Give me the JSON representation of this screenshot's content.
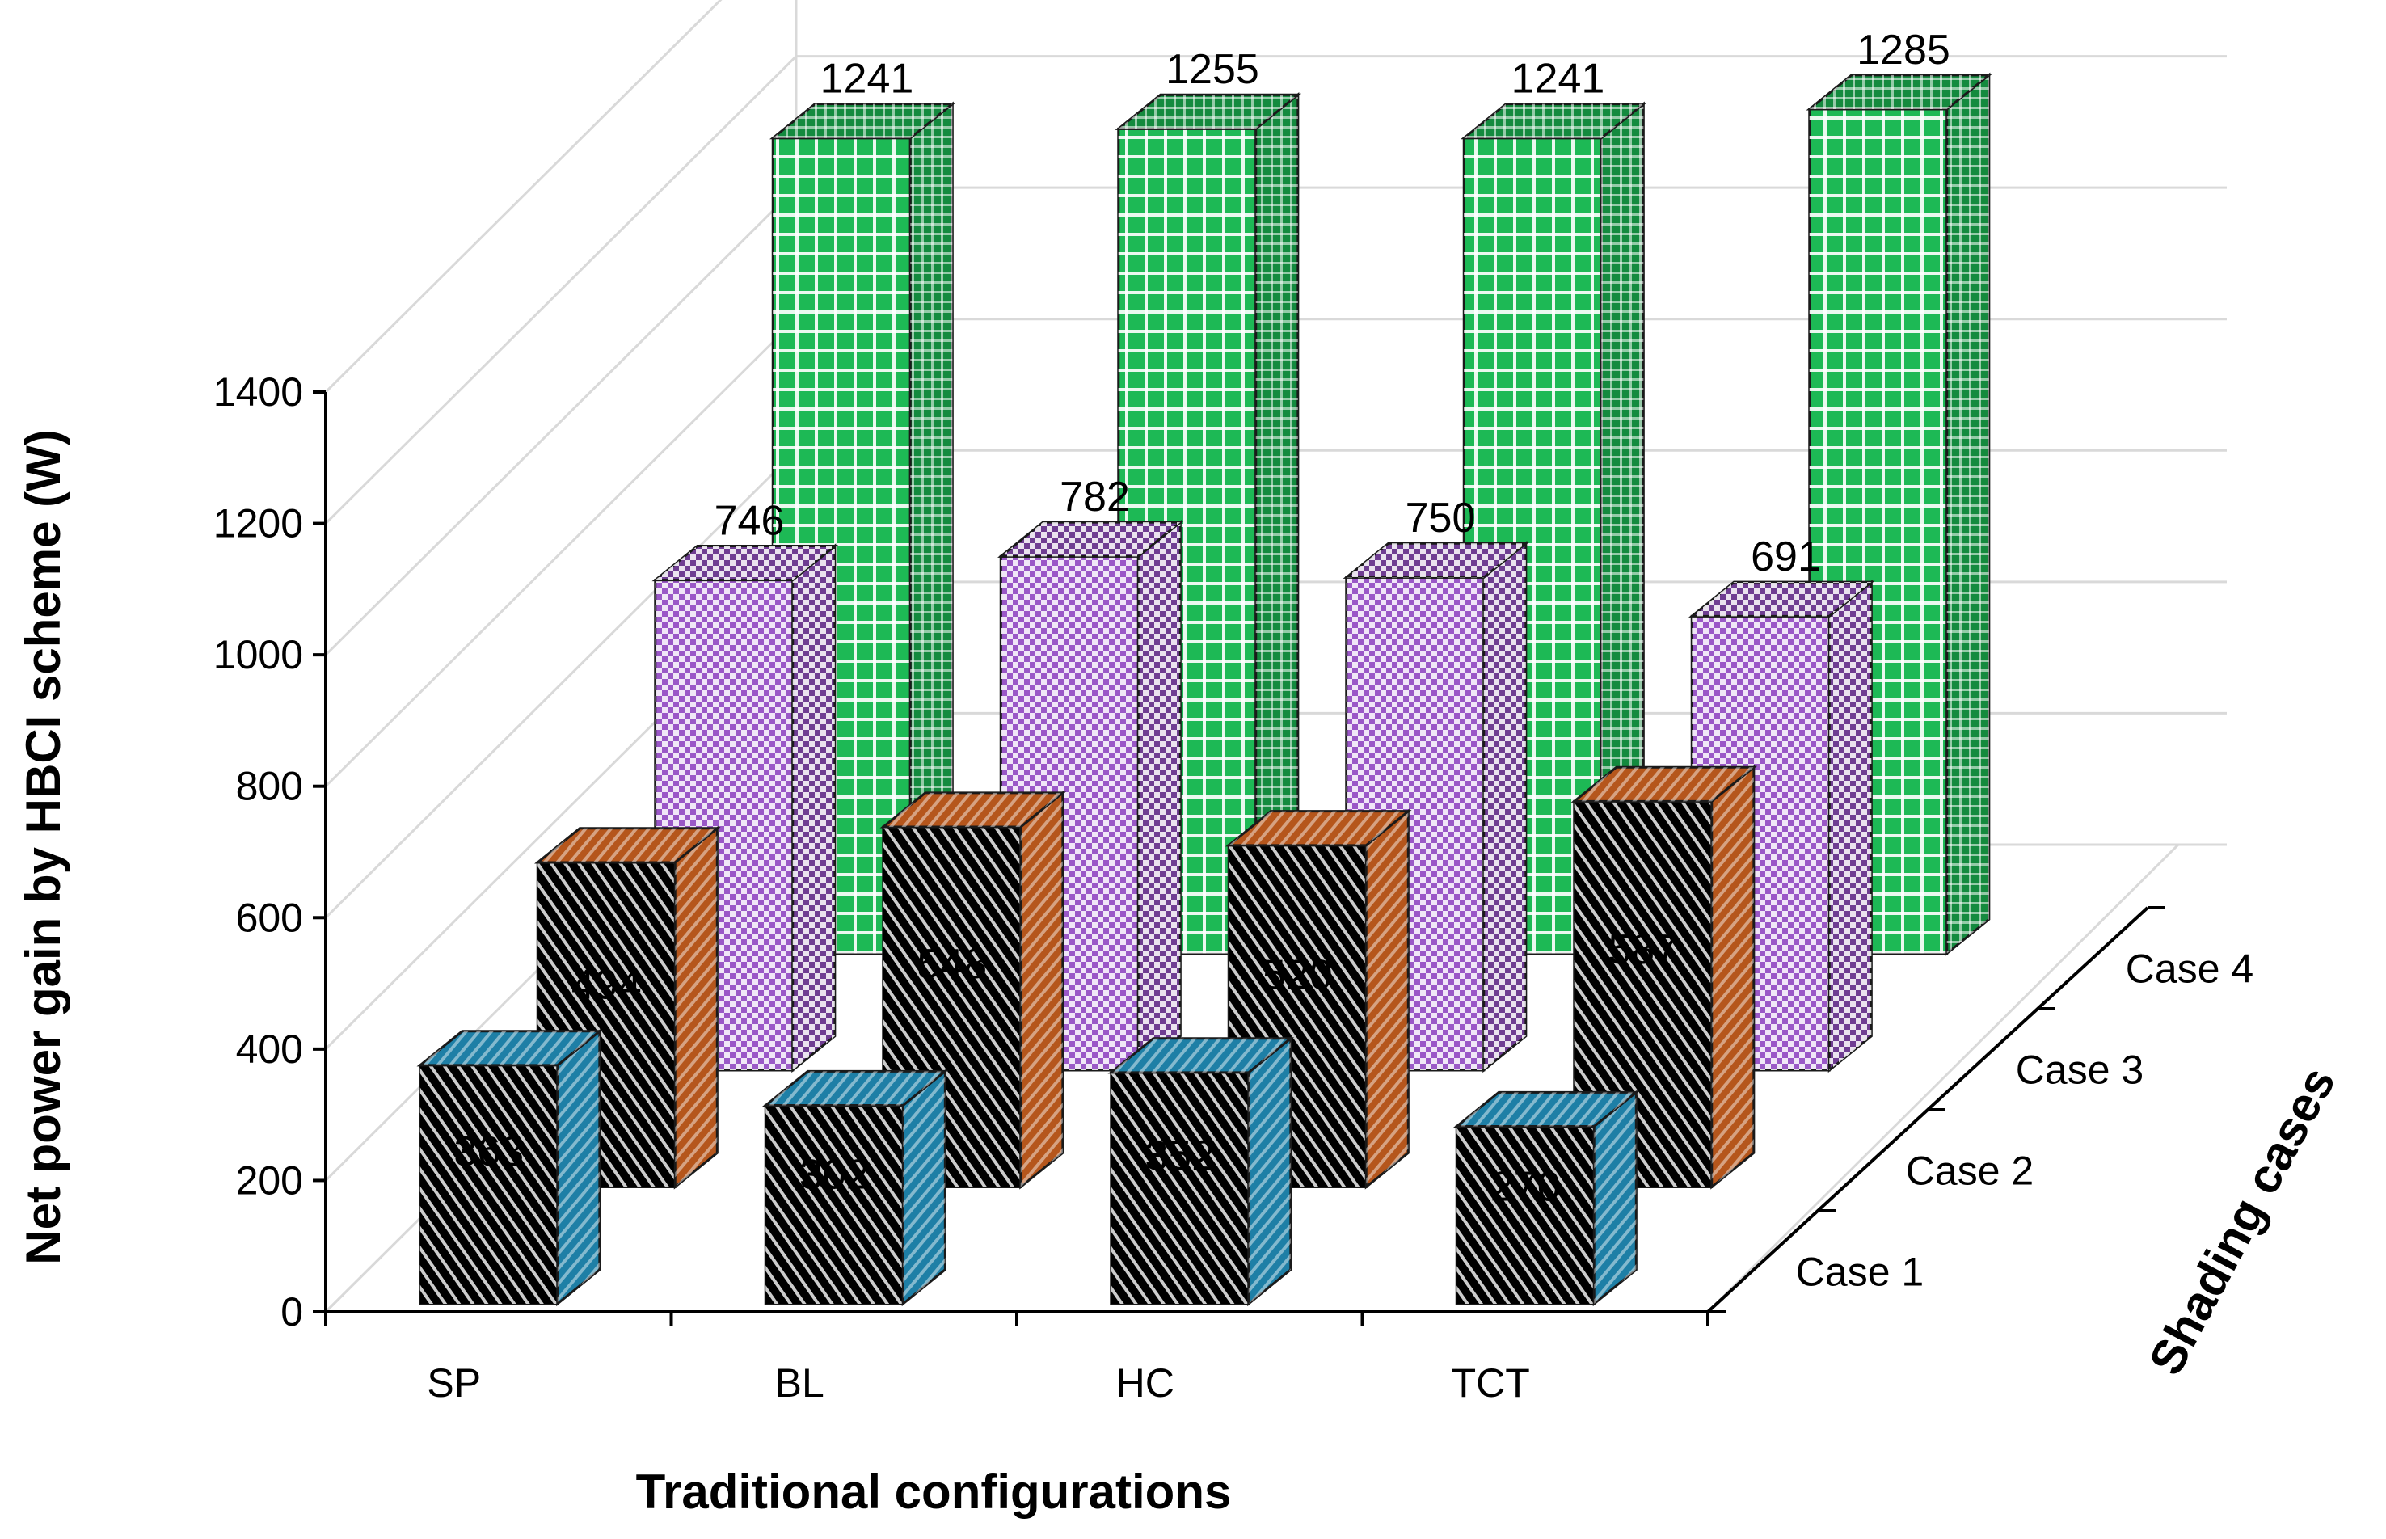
{
  "chart_data": {
    "type": "bar",
    "subtype": "3d-column",
    "ylabel": "Net power gain by HBCI scheme (W)",
    "xlabel": "Traditional configurations",
    "zlabel": "Shading cases",
    "ylim": [
      0,
      1400
    ],
    "yticks": [
      "0",
      "200",
      "400",
      "600",
      "800",
      "1000",
      "1200",
      "1400"
    ],
    "categories": [
      "SP",
      "BL",
      "HC",
      "TCT"
    ],
    "series": [
      {
        "name": "Case 1",
        "values": [
          363,
          302,
          352,
          270
        ],
        "color": "#1fb6f0",
        "side_color": "#1e7fa6",
        "pattern": "diagonal"
      },
      {
        "name": "Case 2",
        "values": [
          494,
          548,
          520,
          587
        ],
        "color": "#f7782a",
        "side_color": "#b5561c",
        "pattern": "diagonal"
      },
      {
        "name": "Case 3",
        "values": [
          746,
          782,
          750,
          691
        ],
        "color": "#9a58c7",
        "side_color": "#6f3d92",
        "pattern": "checker"
      },
      {
        "name": "Case 4",
        "values": [
          1241,
          1255,
          1241,
          1285
        ],
        "color": "#1db955",
        "side_color": "#148a3e",
        "pattern": "grid"
      }
    ]
  }
}
